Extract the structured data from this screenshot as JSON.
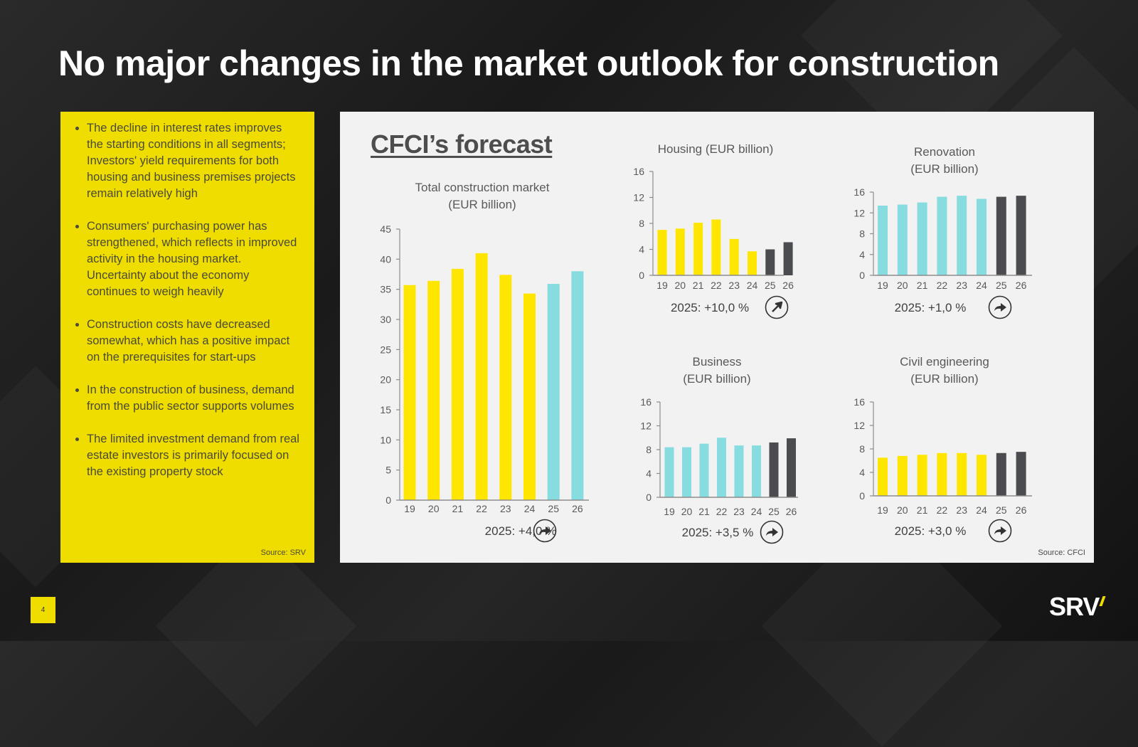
{
  "title": "No major changes in the market outlook for construction",
  "bullets": [
    "The decline in interest rates improves the starting conditions in all segments; Investors' yield requirements for both housing and business premises projects remain relatively high",
    "Consumers' purchasing power has strengthened, which reflects in improved activity in the housing market. Uncertainty about the economy continues to weigh heavily",
    "Construction costs have decreased somewhat, which has a positive impact on the prerequisites for start-ups",
    "In the construction of business, demand from the public sector supports volumes",
    "The limited investment demand from real estate investors is primarily focused on the existing property stock"
  ],
  "bullets_source": "Source: SRV",
  "chart_heading": "CFCI’s forecast",
  "chart_source": "Source: CFCI",
  "page_number": "4",
  "logo": "SRV",
  "colors": {
    "yellow": "#ffe600",
    "cyan": "#86dcdf",
    "dark": "#4a4c50",
    "panel_yellow": "#f0dd00",
    "axis": "#8c8c8c",
    "text": "#595959"
  },
  "icons": [
    "arrow-right-icon",
    "arrow-up-right-icon"
  ],
  "chart_data": [
    {
      "id": "total",
      "type": "bar",
      "title": [
        "Total construction market",
        "(EUR billion)"
      ],
      "categories": [
        "19",
        "20",
        "21",
        "22",
        "23",
        "24",
        "25",
        "26"
      ],
      "values": [
        35.7,
        36.4,
        38.4,
        41.0,
        37.4,
        34.3,
        35.9,
        38.0
      ],
      "bar_colors": [
        "yellow",
        "yellow",
        "yellow",
        "yellow",
        "yellow",
        "yellow",
        "cyan",
        "cyan"
      ],
      "ylim": [
        0,
        45
      ],
      "yticks": [
        0,
        5,
        10,
        15,
        20,
        25,
        30,
        35,
        40,
        45
      ],
      "change_label": "2025: +4,0 %",
      "trend_icon": "arrow-right-icon"
    },
    {
      "id": "housing",
      "type": "bar",
      "title": [
        "Housing (EUR billion)"
      ],
      "categories": [
        "19",
        "20",
        "21",
        "22",
        "23",
        "24",
        "25",
        "26"
      ],
      "values": [
        7.0,
        7.2,
        8.1,
        8.6,
        5.6,
        3.7,
        4.0,
        5.1
      ],
      "bar_colors": [
        "yellow",
        "yellow",
        "yellow",
        "yellow",
        "yellow",
        "yellow",
        "dark",
        "dark"
      ],
      "ylim": [
        0,
        16
      ],
      "yticks": [
        0,
        4,
        8,
        12,
        16
      ],
      "change_label": "2025: +10,0 %",
      "trend_icon": "arrow-up-right-icon"
    },
    {
      "id": "renovation",
      "type": "bar",
      "title": [
        "Renovation",
        "(EUR billion)"
      ],
      "categories": [
        "19",
        "20",
        "21",
        "22",
        "23",
        "24",
        "25",
        "26"
      ],
      "values": [
        13.4,
        13.6,
        14.0,
        15.1,
        15.3,
        14.7,
        15.1,
        15.3
      ],
      "bar_colors": [
        "cyan",
        "cyan",
        "cyan",
        "cyan",
        "cyan",
        "cyan",
        "dark",
        "dark"
      ],
      "ylim": [
        0,
        16
      ],
      "yticks": [
        0,
        4,
        8,
        12,
        16
      ],
      "change_label": "2025: +1,0 %",
      "trend_icon": "arrow-right-icon"
    },
    {
      "id": "business",
      "type": "bar",
      "title": [
        "Business",
        "(EUR billion)"
      ],
      "categories": [
        "19",
        "20",
        "21",
        "22",
        "23",
        "24",
        "25",
        "26"
      ],
      "values": [
        8.4,
        8.4,
        9.0,
        10.0,
        8.7,
        8.7,
        9.2,
        9.9
      ],
      "bar_colors": [
        "cyan",
        "cyan",
        "cyan",
        "cyan",
        "cyan",
        "cyan",
        "dark",
        "dark"
      ],
      "ylim": [
        0,
        16
      ],
      "yticks": [
        0,
        4,
        8,
        12,
        16
      ],
      "change_label": "2025: +3,5 %",
      "trend_icon": "arrow-right-icon"
    },
    {
      "id": "civil",
      "type": "bar",
      "title": [
        "Civil engineering",
        "(EUR billion)"
      ],
      "categories": [
        "19",
        "20",
        "21",
        "22",
        "23",
        "24",
        "25",
        "26"
      ],
      "values": [
        6.5,
        6.8,
        7.0,
        7.3,
        7.3,
        7.0,
        7.3,
        7.5
      ],
      "bar_colors": [
        "yellow",
        "yellow",
        "yellow",
        "yellow",
        "yellow",
        "yellow",
        "dark",
        "dark"
      ],
      "ylim": [
        0,
        16
      ],
      "yticks": [
        0,
        4,
        8,
        12,
        16
      ],
      "change_label": "2025: +3,0 %",
      "trend_icon": "arrow-right-icon"
    }
  ]
}
